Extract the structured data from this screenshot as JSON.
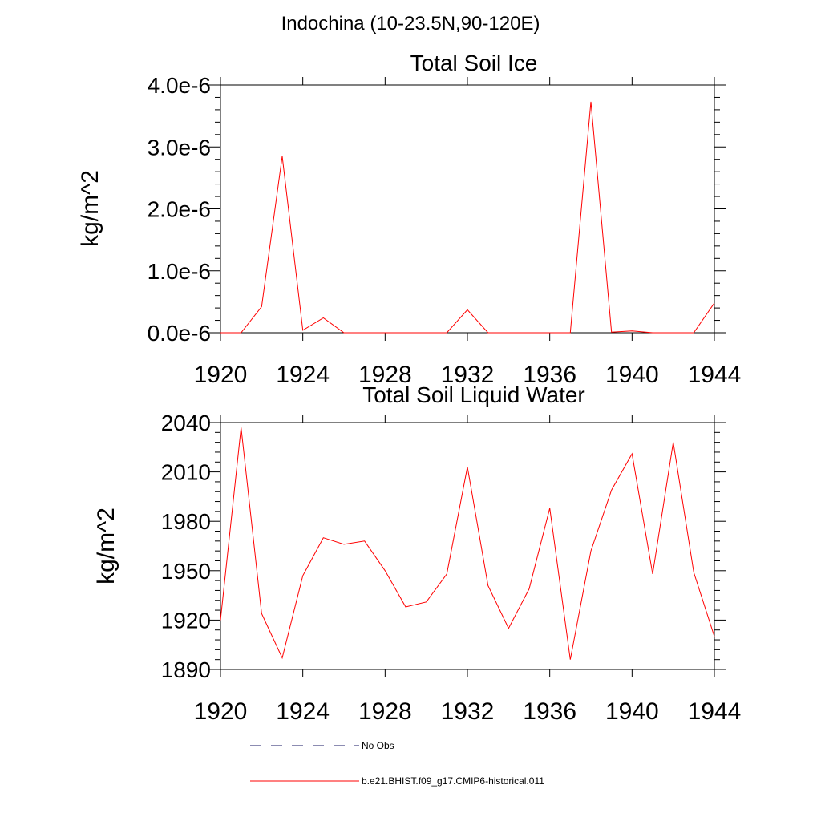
{
  "page": {
    "main_title": "Indochina (10-23.5N,90-120E)"
  },
  "chart_data": [
    {
      "type": "line",
      "title": "Total Soil Ice",
      "ylabel": "kg/m^2",
      "xlabel": "",
      "xlim": [
        1920,
        1944
      ],
      "ylim": [
        0,
        4e-06
      ],
      "xticks": [
        1920,
        1924,
        1928,
        1932,
        1936,
        1940,
        1944
      ],
      "xtick_labels": [
        "1920",
        "1924",
        "1928",
        "1932",
        "1936",
        "1940",
        "1944"
      ],
      "yticks": [
        0,
        1e-06,
        2e-06,
        3e-06,
        4e-06
      ],
      "ytick_labels": [
        "0.0e-6",
        "1.0e-6",
        "2.0e-6",
        "3.0e-6",
        "4.0e-6"
      ],
      "grid": false,
      "x": [
        1920,
        1921,
        1922,
        1923,
        1924,
        1925,
        1926,
        1927,
        1928,
        1929,
        1930,
        1931,
        1932,
        1933,
        1934,
        1935,
        1936,
        1937,
        1938,
        1939,
        1940,
        1941,
        1942,
        1943,
        1944
      ],
      "series": [
        {
          "name": "b.e21.BHIST.f09_g17.CMIP6-historical.011",
          "color": "#ff0000",
          "values": [
            0,
            0,
            4.2e-07,
            2.85e-06,
            4e-08,
            2.4e-07,
            0,
            0,
            0,
            0,
            0,
            0,
            3.7e-07,
            0,
            0,
            0,
            0,
            0,
            3.73e-06,
            1e-08,
            3e-08,
            0,
            0,
            0,
            4.8e-07
          ]
        }
      ]
    },
    {
      "type": "line",
      "title": "Total Soil Liquid Water",
      "ylabel": "kg/m^2",
      "xlabel": "",
      "xlim": [
        1920,
        1944
      ],
      "ylim": [
        1890,
        2040
      ],
      "xticks": [
        1920,
        1924,
        1928,
        1932,
        1936,
        1940,
        1944
      ],
      "xtick_labels": [
        "1920",
        "1924",
        "1928",
        "1932",
        "1936",
        "1940",
        "1944"
      ],
      "yticks": [
        1890,
        1920,
        1950,
        1980,
        2010,
        2040
      ],
      "ytick_labels": [
        "1890",
        "1920",
        "1950",
        "1980",
        "2010",
        "2040"
      ],
      "grid": false,
      "x": [
        1920,
        1921,
        1922,
        1923,
        1924,
        1925,
        1926,
        1927,
        1928,
        1929,
        1930,
        1931,
        1932,
        1933,
        1934,
        1935,
        1936,
        1937,
        1938,
        1939,
        1940,
        1941,
        1942,
        1943,
        1944
      ],
      "series": [
        {
          "name": "b.e21.BHIST.f09_g17.CMIP6-historical.011",
          "color": "#ff0000",
          "values": [
            1920,
            2037,
            1924,
            1897,
            1947,
            1970,
            1966,
            1968,
            1950,
            1928,
            1931,
            1948,
            2013,
            1941,
            1915,
            1939,
            1988,
            1896,
            1962,
            1999,
            2021,
            1948,
            2028,
            1949,
            1910
          ]
        }
      ]
    }
  ],
  "legend": {
    "items": [
      {
        "label": "No Obs",
        "color": "#1a1a66",
        "dashed": true
      },
      {
        "label": "b.e21.BHIST.f09_g17.CMIP6-historical.011",
        "color": "#ff0000",
        "dashed": false
      }
    ]
  }
}
